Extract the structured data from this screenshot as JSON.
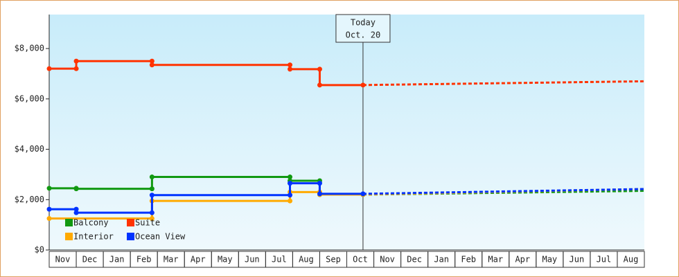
{
  "chart_data": {
    "type": "line",
    "categories": [
      "Nov",
      "Dec",
      "Jan",
      "Feb",
      "Mar",
      "Apr",
      "May",
      "Jun",
      "Jul",
      "Aug",
      "Sep",
      "Oct",
      "Nov",
      "Dec",
      "Jan",
      "Feb",
      "Mar",
      "Apr",
      "May",
      "Jun",
      "Jul",
      "Aug"
    ],
    "xlim": [
      0,
      22
    ],
    "ylim": [
      0,
      9350
    ],
    "yticks": [
      {
        "value": 0,
        "label": "$0"
      },
      {
        "value": 2000,
        "label": "$2,000"
      },
      {
        "value": 4000,
        "label": "$4,000"
      },
      {
        "value": 6000,
        "label": "$6,000"
      },
      {
        "value": 8000,
        "label": "$8,000"
      }
    ],
    "annotation": {
      "x": 11.6,
      "lines": [
        "Today",
        "Oct. 20"
      ]
    },
    "series": [
      {
        "name": "Balcony",
        "color": "#119911",
        "x": [
          0,
          1,
          1,
          3.8,
          3.8,
          8.9,
          8.9,
          10,
          10,
          11.6
        ],
        "values": [
          2450,
          2450,
          2430,
          2430,
          2900,
          2900,
          2750,
          2750,
          2200,
          2200
        ],
        "forecast_x": [
          11.6,
          22
        ],
        "forecast_values": [
          2200,
          2350
        ]
      },
      {
        "name": "Suite",
        "color": "#ff3300",
        "x": [
          0,
          1,
          1,
          3.8,
          3.8,
          8.9,
          8.9,
          10,
          10,
          11.6
        ],
        "values": [
          7200,
          7200,
          7500,
          7500,
          7350,
          7350,
          7180,
          7180,
          6550,
          6550
        ],
        "forecast_x": [
          11.6,
          22
        ],
        "forecast_values": [
          6550,
          6700
        ]
      },
      {
        "name": "Interior",
        "color": "#ffaa00",
        "x": [
          0,
          3.8,
          3.8,
          8.9,
          8.9,
          10,
          10,
          11.6
        ],
        "values": [
          1250,
          1250,
          1950,
          1950,
          2300,
          2300,
          2200,
          2200
        ],
        "forecast_x": [
          11.6,
          22
        ],
        "forecast_values": [
          2200,
          2420
        ]
      },
      {
        "name": "Ocean View",
        "color": "#0033ff",
        "x": [
          0,
          1,
          1,
          3.8,
          3.8,
          8.9,
          8.9,
          10,
          10,
          11.6
        ],
        "values": [
          1620,
          1620,
          1480,
          1480,
          2180,
          2180,
          2650,
          2650,
          2230,
          2230
        ],
        "forecast_x": [
          11.6,
          22
        ],
        "forecast_values": [
          2230,
          2420
        ]
      }
    ]
  }
}
